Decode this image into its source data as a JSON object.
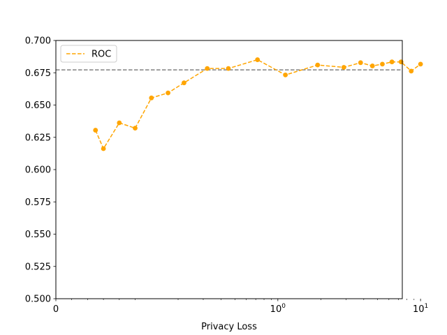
{
  "chart_data": {
    "type": "line",
    "title": "",
    "xlabel": "Privacy Loss",
    "ylabel": "",
    "xscale": "symlog",
    "xlim": [
      0,
      10
    ],
    "ylim": [
      0.5,
      0.7
    ],
    "grid": false,
    "legend_position": "upper-left",
    "x_ticks": [
      {
        "value": 0,
        "base": "0",
        "exp": ""
      },
      {
        "value": 1,
        "base": "10",
        "exp": "0"
      },
      {
        "value": 10,
        "base": "10",
        "exp": "1"
      }
    ],
    "y_ticks": [
      "0.500",
      "0.525",
      "0.550",
      "0.575",
      "0.600",
      "0.625",
      "0.650",
      "0.675",
      "0.700"
    ],
    "reference_line": {
      "y": 0.6772,
      "color": "#808080",
      "style": "dashed"
    },
    "series": [
      {
        "name": "ROC",
        "color": "#FFA500",
        "line_style": "dashed",
        "marker": "circle",
        "x": [
          0.05,
          0.06,
          0.08,
          0.1,
          0.13,
          0.17,
          0.22,
          0.32,
          0.45,
          0.72,
          1.13,
          1.9,
          2.9,
          3.8,
          4.6,
          5.4,
          6.3,
          7.3,
          8.6,
          10.0
        ],
        "y": [
          0.6305,
          0.6162,
          0.6362,
          0.6321,
          0.6555,
          0.6594,
          0.6672,
          0.6783,
          0.6783,
          0.6851,
          0.6733,
          0.681,
          0.6792,
          0.6828,
          0.6803,
          0.6817,
          0.6834,
          0.6834,
          0.6763,
          0.6817
        ]
      }
    ]
  }
}
